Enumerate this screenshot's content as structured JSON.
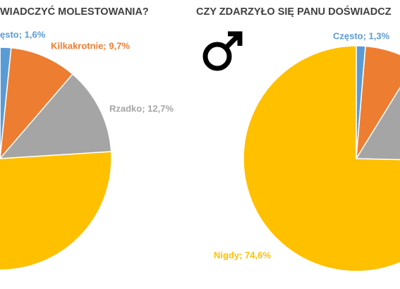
{
  "chart_data": [
    {
      "type": "pie",
      "title": "WIADCZYĆ MOLESTOWANIA?",
      "values": [
        1.6,
        9.7,
        12.7,
        76.0
      ],
      "value_labels": [
        "ęsto; 1,6%",
        "Kilkakrotnie; 9,7%",
        "Rzadko; 12,7%",
        null
      ],
      "colors": [
        "#5b9bd5",
        "#ed7d31",
        "#a5a5a5",
        "#ffc000"
      ]
    },
    {
      "type": "pie",
      "title": "CZY ZDARZYŁO SIĘ PANU DOŚWIADCZ",
      "values": [
        1.3,
        7.5,
        16.6,
        74.6
      ],
      "value_labels": [
        "Często; 1,3%",
        null,
        null,
        "Nigdy; 74,6%"
      ],
      "colors": [
        "#5b9bd5",
        "#ed7d31",
        "#a5a5a5",
        "#ffc000"
      ]
    }
  ]
}
